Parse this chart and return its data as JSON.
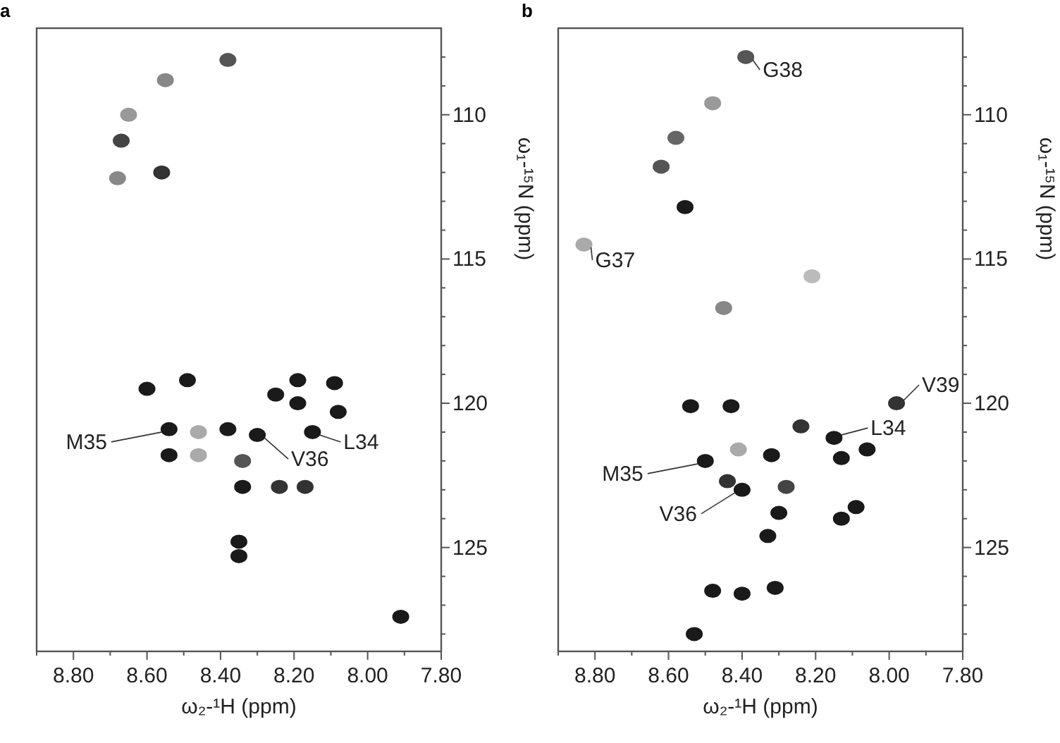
{
  "chart_data": [
    {
      "type": "scatter",
      "title": "a",
      "xlabel": "ω₂-¹H (ppm)",
      "ylabel": "ω₁-¹⁵N (ppm)",
      "marker": "circle",
      "grid": false,
      "xlim": [
        8.9,
        7.8
      ],
      "ylim": [
        128.6,
        107
      ],
      "xticks": [
        {
          "value": 8.9,
          "label": null
        },
        {
          "value": 8.8,
          "label": "8.80"
        },
        {
          "value": 8.7,
          "label": null
        },
        {
          "value": 8.6,
          "label": "8.60"
        },
        {
          "value": 8.5,
          "label": null
        },
        {
          "value": 8.4,
          "label": "8.40"
        },
        {
          "value": 8.3,
          "label": null
        },
        {
          "value": 8.2,
          "label": "8.20"
        },
        {
          "value": 8.1,
          "label": null
        },
        {
          "value": 8.0,
          "label": "8.00"
        },
        {
          "value": 7.9,
          "label": null
        },
        {
          "value": 7.8,
          "label": "7.80"
        }
      ],
      "yticks": [
        {
          "value": 108,
          "label": null
        },
        {
          "value": 109,
          "label": null
        },
        110,
        {
          "value": 111,
          "label": null
        },
        {
          "value": 112,
          "label": null
        },
        {
          "value": 113,
          "label": null
        },
        {
          "value": 114,
          "label": null
        },
        115,
        {
          "value": 116,
          "label": null
        },
        {
          "value": 117,
          "label": null
        },
        {
          "value": 118,
          "label": null
        },
        {
          "value": 119,
          "label": null
        },
        120,
        {
          "value": 121,
          "label": null
        },
        {
          "value": 122,
          "label": null
        },
        {
          "value": 123,
          "label": null
        },
        {
          "value": 124,
          "label": null
        },
        125,
        {
          "value": 126,
          "label": null
        },
        {
          "value": 127,
          "label": null
        },
        {
          "value": 128,
          "label": null
        }
      ],
      "series": [
        {
          "x": [
            8.38,
            8.55,
            8.65,
            8.67,
            8.68,
            8.56,
            8.6,
            8.49,
            8.25,
            8.19,
            8.19,
            8.09,
            8.08,
            8.54,
            8.54,
            8.46,
            8.46,
            8.38,
            8.3,
            8.15,
            8.34,
            8.34,
            8.24,
            8.17,
            8.35,
            8.35,
            7.91
          ],
          "values": [
            108.1,
            108.8,
            110.0,
            110.9,
            112.2,
            112.0,
            119.5,
            119.2,
            119.7,
            119.2,
            120.0,
            119.3,
            120.3,
            120.9,
            121.8,
            121.0,
            121.8,
            120.9,
            121.1,
            121.0,
            122.0,
            122.9,
            122.9,
            122.9,
            124.8,
            125.3,
            127.4
          ],
          "colors": [
            "#555555",
            "#888888",
            "#999999",
            "#444444",
            "#888888",
            "#333333",
            "#1a1a1a",
            "#1a1a1a",
            "#1a1a1a",
            "#1a1a1a",
            "#1a1a1a",
            "#1a1a1a",
            "#1a1a1a",
            "#1a1a1a",
            "#1a1a1a",
            "#aaaaaa",
            "#aaaaaa",
            "#1a1a1a",
            "#1a1a1a",
            "#1a1a1a",
            "#555555",
            "#1a1a1a",
            "#333333",
            "#333333",
            "#1a1a1a",
            "#1a1a1a",
            "#1a1a1a"
          ]
        }
      ],
      "annotations": [
        {
          "text": "M35",
          "x": 8.54,
          "y": 120.9
        },
        {
          "text": "V36",
          "x": 8.3,
          "y": 121.1
        },
        {
          "text": "L34",
          "x": 8.15,
          "y": 121.0
        }
      ]
    },
    {
      "type": "scatter",
      "title": "b",
      "xlabel": "ω₂-¹H (ppm)",
      "ylabel": "ω₁-¹⁵N (ppm)",
      "marker": "circle",
      "grid": false,
      "xlim": [
        8.9,
        7.8
      ],
      "ylim": [
        128.6,
        107
      ],
      "xticks": [
        {
          "value": 8.9,
          "label": null
        },
        {
          "value": 8.8,
          "label": "8.80"
        },
        {
          "value": 8.7,
          "label": null
        },
        {
          "value": 8.6,
          "label": "8.60"
        },
        {
          "value": 8.5,
          "label": null
        },
        {
          "value": 8.4,
          "label": "8.40"
        },
        {
          "value": 8.3,
          "label": null
        },
        {
          "value": 8.2,
          "label": "8.20"
        },
        {
          "value": 8.1,
          "label": null
        },
        {
          "value": 8.0,
          "label": "8.00"
        },
        {
          "value": 7.9,
          "label": null
        },
        {
          "value": 7.8,
          "label": "7.80"
        }
      ],
      "yticks": [
        {
          "value": 108,
          "label": null
        },
        {
          "value": 109,
          "label": null
        },
        110,
        {
          "value": 111,
          "label": null
        },
        {
          "value": 112,
          "label": null
        },
        {
          "value": 113,
          "label": null
        },
        {
          "value": 114,
          "label": null
        },
        115,
        {
          "value": 116,
          "label": null
        },
        {
          "value": 117,
          "label": null
        },
        {
          "value": 118,
          "label": null
        },
        {
          "value": 119,
          "label": null
        },
        120,
        {
          "value": 121,
          "label": null
        },
        {
          "value": 122,
          "label": null
        },
        {
          "value": 123,
          "label": null
        },
        {
          "value": 124,
          "label": null
        },
        125,
        {
          "value": 126,
          "label": null
        },
        {
          "value": 127,
          "label": null
        },
        {
          "value": 128,
          "label": null
        }
      ],
      "series": [
        {
          "x": [
            8.39,
            8.48,
            8.58,
            8.62,
            8.555,
            8.83,
            8.21,
            8.45,
            8.54,
            8.43,
            7.98,
            8.24,
            8.15,
            8.13,
            8.06,
            8.41,
            8.32,
            8.5,
            8.44,
            8.4,
            8.28,
            8.3,
            8.33,
            8.09,
            8.13,
            8.48,
            8.4,
            8.31,
            8.53
          ],
          "values": [
            108.0,
            109.6,
            110.8,
            111.8,
            113.2,
            114.5,
            115.6,
            116.7,
            120.1,
            120.1,
            120.0,
            120.8,
            121.2,
            121.9,
            121.6,
            121.6,
            121.8,
            122.0,
            122.7,
            123.0,
            122.9,
            123.8,
            124.6,
            123.6,
            124.0,
            126.5,
            126.6,
            126.4,
            128.0
          ],
          "colors": [
            "#555555",
            "#999999",
            "#666666",
            "#555555",
            "#1a1a1a",
            "#aaaaaa",
            "#bbbbbb",
            "#888888",
            "#1a1a1a",
            "#1a1a1a",
            "#333333",
            "#333333",
            "#1a1a1a",
            "#1a1a1a",
            "#1a1a1a",
            "#aaaaaa",
            "#1a1a1a",
            "#1a1a1a",
            "#333333",
            "#1a1a1a",
            "#444444",
            "#1a1a1a",
            "#1a1a1a",
            "#1a1a1a",
            "#1a1a1a",
            "#1a1a1a",
            "#1a1a1a",
            "#1a1a1a",
            "#1a1a1a"
          ]
        }
      ],
      "annotations": [
        {
          "text": "G38",
          "x": 8.39,
          "y": 108.0
        },
        {
          "text": "G37",
          "x": 8.83,
          "y": 114.5
        },
        {
          "text": "V39",
          "x": 7.98,
          "y": 120.0
        },
        {
          "text": "L34",
          "x": 8.15,
          "y": 121.2
        },
        {
          "text": "M35",
          "x": 8.5,
          "y": 122.0
        },
        {
          "text": "V36",
          "x": 8.4,
          "y": 123.0
        }
      ]
    }
  ]
}
